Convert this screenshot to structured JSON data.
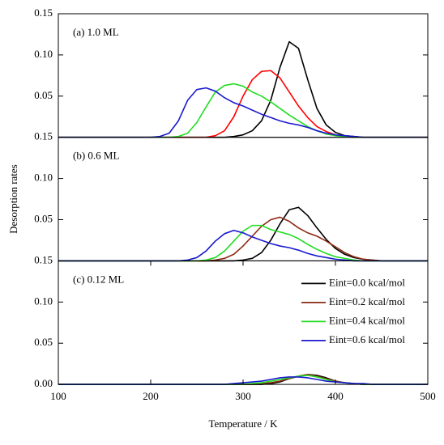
{
  "chart_data": [
    {
      "type": "line",
      "title": "(a) 1.0 ML",
      "x": [
        100,
        200,
        210,
        220,
        230,
        240,
        250,
        260,
        270,
        280,
        290,
        300,
        310,
        320,
        330,
        340,
        350,
        360,
        370,
        380,
        390,
        400,
        410,
        420,
        430,
        440,
        450,
        500
      ],
      "xlim": [
        100,
        500
      ],
      "ylim": [
        0,
        0.15
      ],
      "yticks": [
        0.05,
        {
          "value": 0.1,
          "label": "0.10"
        },
        0.15
      ],
      "series": [
        {
          "name": "Eint=0.0 kcal/mol",
          "color": "#000000",
          "values": [
            0,
            0,
            0,
            0,
            0,
            0,
            0,
            0,
            0,
            0,
            0.001,
            0.003,
            0.008,
            0.02,
            0.045,
            0.085,
            0.116,
            0.108,
            0.07,
            0.035,
            0.015,
            0.006,
            0.002,
            0.001,
            0,
            0,
            0,
            0
          ]
        },
        {
          "name": "Eint=0.2 kcal/mol",
          "color": "#ff0000",
          "values": [
            0,
            0,
            0,
            0,
            0,
            0,
            0,
            0,
            0.002,
            0.008,
            0.025,
            0.05,
            0.07,
            0.08,
            0.081,
            0.072,
            0.055,
            0.038,
            0.024,
            0.013,
            0.007,
            0.003,
            0.001,
            0,
            0,
            0,
            0,
            0
          ]
        },
        {
          "name": "Eint=0.4 kcal/mol",
          "color": "#22dd22",
          "values": [
            0,
            0,
            0,
            0,
            0.001,
            0.005,
            0.018,
            0.037,
            0.055,
            0.063,
            0.065,
            0.062,
            0.055,
            0.05,
            0.043,
            0.035,
            0.027,
            0.02,
            0.013,
            0.008,
            0.004,
            0.002,
            0.001,
            0,
            0,
            0,
            0,
            0
          ]
        },
        {
          "name": "Eint=0.6 kcal/mol",
          "color": "#1a1ad0",
          "values": [
            0,
            0,
            0.001,
            0.005,
            0.02,
            0.045,
            0.058,
            0.06,
            0.056,
            0.048,
            0.042,
            0.038,
            0.033,
            0.028,
            0.024,
            0.02,
            0.017,
            0.015,
            0.012,
            0.008,
            0.005,
            0.003,
            0.002,
            0.001,
            0,
            0,
            0,
            0
          ]
        }
      ]
    },
    {
      "type": "line",
      "title": "(b) 0.6 ML",
      "ylabel": "Desorption rates",
      "x": [
        100,
        200,
        210,
        220,
        230,
        240,
        250,
        260,
        270,
        280,
        290,
        300,
        310,
        320,
        330,
        340,
        350,
        360,
        370,
        380,
        390,
        400,
        410,
        420,
        430,
        440,
        450,
        500
      ],
      "xlim": [
        100,
        500
      ],
      "ylim": [
        0,
        0.15
      ],
      "yticks": [
        0.05,
        {
          "value": 0.1,
          "label": "0.10"
        },
        0.15
      ],
      "series": [
        {
          "name": "Eint=0.0 kcal/mol",
          "color": "#000000",
          "values": [
            0,
            0,
            0,
            0,
            0,
            0,
            0,
            0,
            0,
            0,
            0,
            0.001,
            0.003,
            0.01,
            0.025,
            0.045,
            0.062,
            0.065,
            0.055,
            0.04,
            0.026,
            0.015,
            0.008,
            0.004,
            0.002,
            0.001,
            0,
            0
          ]
        },
        {
          "name": "Eint=0.2 kcal/mol",
          "color": "#8b2a14",
          "values": [
            0,
            0,
            0,
            0,
            0,
            0,
            0,
            0,
            0.001,
            0.003,
            0.008,
            0.018,
            0.03,
            0.042,
            0.05,
            0.053,
            0.048,
            0.04,
            0.034,
            0.03,
            0.024,
            0.017,
            0.01,
            0.005,
            0.002,
            0.001,
            0,
            0
          ]
        },
        {
          "name": "Eint=0.4 kcal/mol",
          "color": "#22dd22",
          "values": [
            0,
            0,
            0,
            0,
            0,
            0,
            0,
            0.001,
            0.004,
            0.012,
            0.024,
            0.036,
            0.043,
            0.043,
            0.038,
            0.035,
            0.032,
            0.027,
            0.02,
            0.014,
            0.009,
            0.005,
            0.003,
            0.001,
            0,
            0,
            0,
            0
          ]
        },
        {
          "name": "Eint=0.6 kcal/mol",
          "color": "#1a1ad0",
          "values": [
            0,
            0,
            0,
            0,
            0,
            0.001,
            0.004,
            0.012,
            0.024,
            0.033,
            0.037,
            0.034,
            0.029,
            0.025,
            0.021,
            0.018,
            0.016,
            0.013,
            0.009,
            0.006,
            0.004,
            0.002,
            0.001,
            0,
            0,
            0,
            0,
            0
          ]
        }
      ]
    },
    {
      "type": "line",
      "title": "(c) 0.12 ML",
      "xlabel": "Temperature / K",
      "legend": "upper right",
      "x": [
        100,
        200,
        210,
        220,
        230,
        240,
        250,
        260,
        270,
        280,
        290,
        300,
        310,
        320,
        330,
        340,
        350,
        360,
        370,
        380,
        390,
        400,
        410,
        420,
        430,
        440,
        450,
        500
      ],
      "xlim": [
        100,
        500
      ],
      "ylim": [
        0,
        0.15
      ],
      "xticks": [
        100,
        200,
        300,
        400,
        500
      ],
      "yticks": [
        {
          "value": 0,
          "label": "0.00"
        },
        0.05,
        {
          "value": 0.1,
          "label": "0.10"
        },
        0.15
      ],
      "series": [
        {
          "name": "Eint=0.0 kcal/mol",
          "color": "#000000",
          "values": [
            0,
            0,
            0,
            0,
            0,
            0,
            0,
            0,
            0,
            0,
            0,
            0,
            0,
            0,
            0.001,
            0.003,
            0.007,
            0.01,
            0.012,
            0.011,
            0.008,
            0.004,
            0.002,
            0.001,
            0,
            0,
            0,
            0
          ]
        },
        {
          "name": "Eint=0.2 kcal/mol",
          "color": "#8b2a14",
          "values": [
            0,
            0,
            0,
            0,
            0,
            0,
            0,
            0,
            0,
            0,
            0,
            0,
            0,
            0.001,
            0.002,
            0.004,
            0.007,
            0.01,
            0.012,
            0.01,
            0.007,
            0.004,
            0.002,
            0.001,
            0,
            0,
            0,
            0
          ]
        },
        {
          "name": "Eint=0.4 kcal/mol",
          "color": "#22dd22",
          "values": [
            0,
            0,
            0,
            0,
            0,
            0,
            0,
            0,
            0,
            0,
            0,
            0,
            0.001,
            0.002,
            0.004,
            0.006,
            0.008,
            0.01,
            0.011,
            0.009,
            0.006,
            0.003,
            0.002,
            0.001,
            0,
            0,
            0,
            0
          ]
        },
        {
          "name": "Eint=0.6 kcal/mol",
          "color": "#1a1ad0",
          "values": [
            0,
            0,
            0,
            0,
            0,
            0,
            0,
            0,
            0,
            0,
            0.001,
            0.002,
            0.003,
            0.004,
            0.006,
            0.008,
            0.009,
            0.009,
            0.008,
            0.006,
            0.004,
            0.003,
            0.002,
            0.001,
            0.001,
            0,
            0,
            0
          ]
        }
      ]
    }
  ]
}
